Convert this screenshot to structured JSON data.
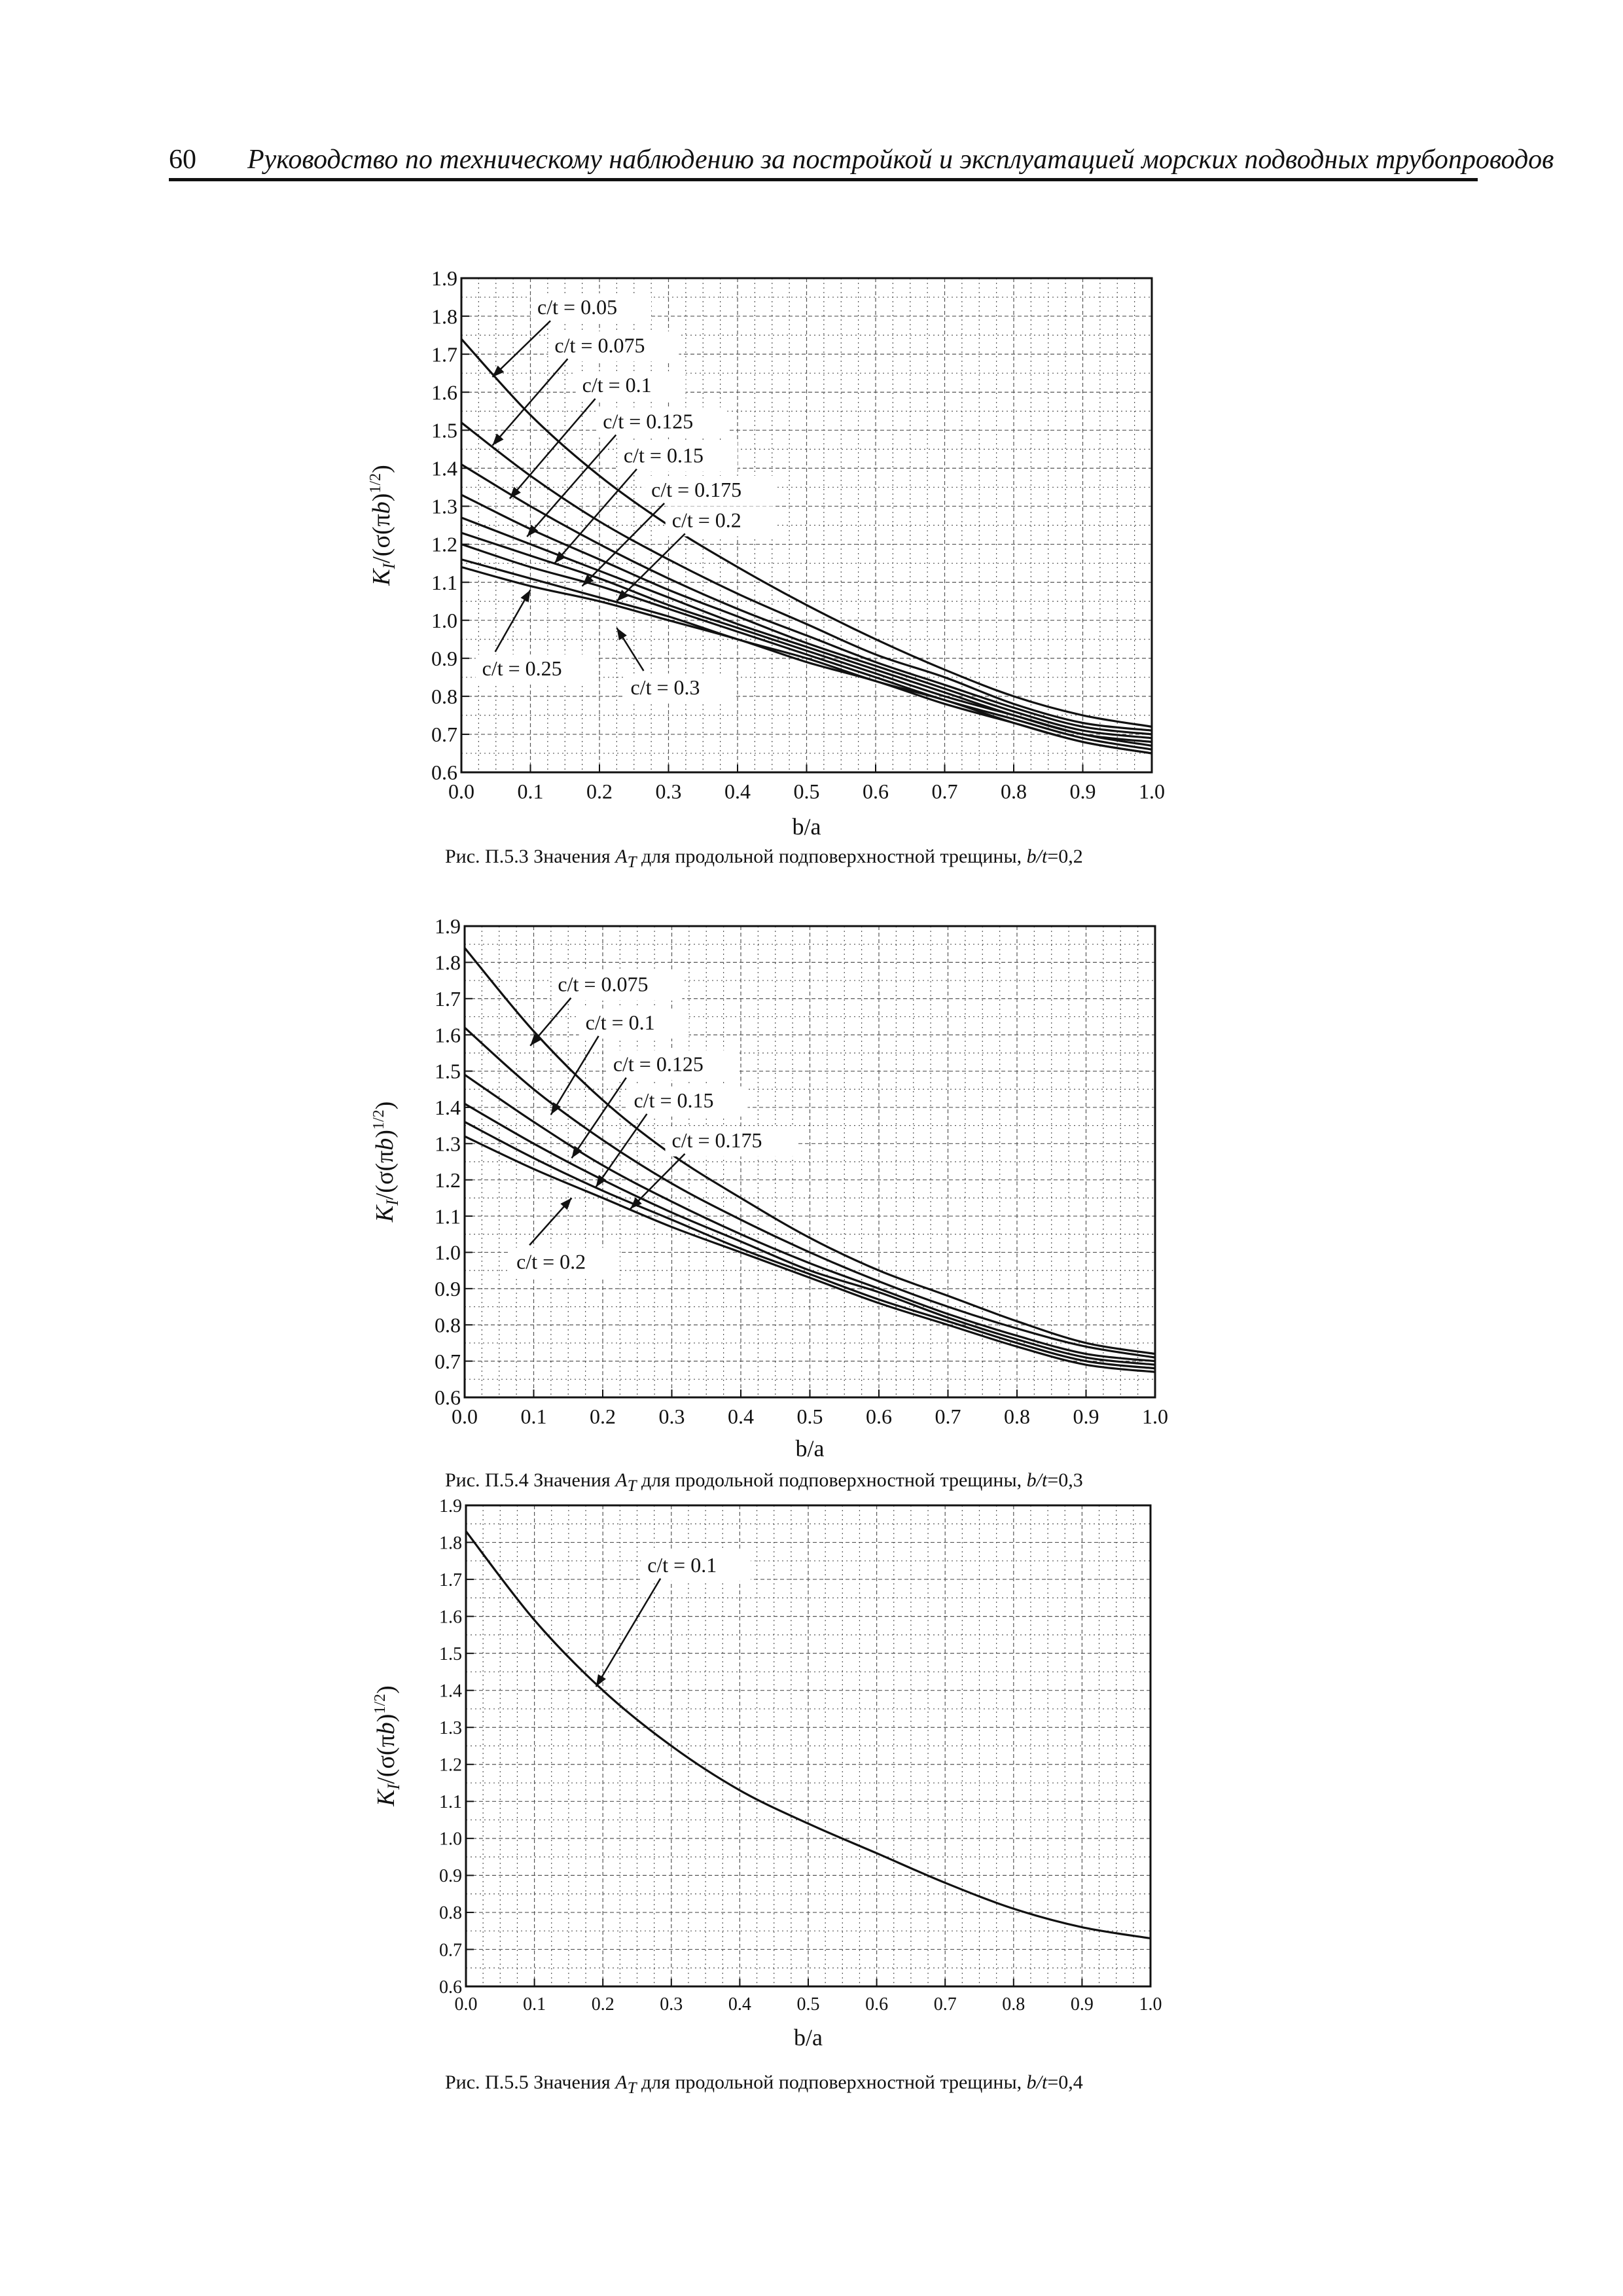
{
  "header": {
    "page_number": "60",
    "title": "Руководство по техническому наблюдению за постройкой и эксплуатацией морских подводных трубопроводов"
  },
  "chart_data": [
    {
      "type": "line",
      "id": "fig-5-3",
      "caption_prefix": "Рис. П.5.3 Значения",
      "caption_symbol": "A",
      "caption_subscript": "T",
      "caption_text": "для продольной подповерхностной трещины,",
      "caption_param": "b/t",
      "caption_value": "=0,2",
      "xlabel": "b/a",
      "ylabel": "K_I/(σ(πb)^1/2)",
      "xlim": [
        0.0,
        1.0
      ],
      "ylim": [
        0.6,
        1.9
      ],
      "xticks": [
        "0.0",
        "0.1",
        "0.2",
        "0.3",
        "0.4",
        "0.5",
        "0.6",
        "0.7",
        "0.8",
        "0.9",
        "1.0"
      ],
      "yticks": [
        "0.6",
        "0.7",
        "0.8",
        "0.9",
        "1.0",
        "1.1",
        "1.2",
        "1.3",
        "1.4",
        "1.5",
        "1.6",
        "1.7",
        "1.8",
        "1.9"
      ],
      "grid": true,
      "x": [
        0.0,
        0.1,
        0.2,
        0.3,
        0.4,
        0.5,
        0.6,
        0.7,
        0.8,
        0.9,
        1.0
      ],
      "series": [
        {
          "name": "c/t = 0.05",
          "values": [
            1.74,
            1.54,
            1.38,
            1.25,
            1.14,
            1.04,
            0.95,
            0.87,
            0.8,
            0.75,
            0.72
          ]
        },
        {
          "name": "c/t = 0.075",
          "values": [
            1.52,
            1.38,
            1.26,
            1.16,
            1.07,
            0.99,
            0.91,
            0.85,
            0.78,
            0.73,
            0.71
          ]
        },
        {
          "name": "c/t = 0.1",
          "values": [
            1.41,
            1.3,
            1.2,
            1.11,
            1.03,
            0.96,
            0.89,
            0.83,
            0.77,
            0.72,
            0.7
          ]
        },
        {
          "name": "c/t = 0.125",
          "values": [
            1.33,
            1.24,
            1.16,
            1.08,
            1.01,
            0.94,
            0.88,
            0.82,
            0.76,
            0.71,
            0.69
          ]
        },
        {
          "name": "c/t = 0.15",
          "values": [
            1.27,
            1.2,
            1.13,
            1.06,
            0.99,
            0.93,
            0.87,
            0.81,
            0.75,
            0.7,
            0.68
          ]
        },
        {
          "name": "c/t = 0.175",
          "values": [
            1.23,
            1.17,
            1.11,
            1.04,
            0.98,
            0.92,
            0.86,
            0.8,
            0.75,
            0.7,
            0.67
          ]
        },
        {
          "name": "c/t = 0.2",
          "values": [
            1.2,
            1.14,
            1.09,
            1.03,
            0.97,
            0.91,
            0.85,
            0.79,
            0.74,
            0.69,
            0.66
          ]
        },
        {
          "name": "c/t = 0.25",
          "values": [
            1.16,
            1.11,
            1.06,
            1.01,
            0.95,
            0.9,
            0.84,
            0.79,
            0.73,
            0.68,
            0.65
          ]
        },
        {
          "name": "c/t = 0.3",
          "values": [
            1.14,
            1.09,
            1.05,
            1.0,
            0.95,
            0.89,
            0.84,
            0.78,
            0.73,
            0.68,
            0.65
          ]
        }
      ],
      "annotations": [
        {
          "text": "c/t = 0.05",
          "tx": 0.11,
          "ty": 1.805,
          "px": 0.045,
          "py": 1.64
        },
        {
          "text": "c/t = 0.075",
          "tx": 0.135,
          "ty": 1.705,
          "px": 0.045,
          "py": 1.46
        },
        {
          "text": "c/t = 0.1",
          "tx": 0.175,
          "ty": 1.6,
          "px": 0.07,
          "py": 1.32
        },
        {
          "text": "c/t = 0.125",
          "tx": 0.205,
          "ty": 1.505,
          "px": 0.095,
          "py": 1.22
        },
        {
          "text": "c/t = 0.15",
          "tx": 0.235,
          "ty": 1.415,
          "px": 0.135,
          "py": 1.15
        },
        {
          "text": "c/t = 0.175",
          "tx": 0.275,
          "ty": 1.325,
          "px": 0.175,
          "py": 1.09
        },
        {
          "text": "c/t = 0.2",
          "tx": 0.305,
          "ty": 1.245,
          "px": 0.225,
          "py": 1.05
        },
        {
          "text": "c/t = 0.25",
          "tx": 0.03,
          "ty": 0.855,
          "px": 0.1,
          "py": 1.08,
          "below": true
        },
        {
          "text": "c/t = 0.3",
          "tx": 0.245,
          "ty": 0.805,
          "px": 0.225,
          "py": 0.98,
          "below": true
        }
      ]
    },
    {
      "type": "line",
      "id": "fig-5-4",
      "caption_prefix": "Рис. П.5.4 Значения",
      "caption_symbol": "A",
      "caption_subscript": "T",
      "caption_text": "для продольной подповерхностной трещины,",
      "caption_param": "b/t",
      "caption_value": "=0,3",
      "xlabel": "b/a",
      "ylabel": "K_I/(σ(πb)^1/2)",
      "xlim": [
        0.0,
        1.0
      ],
      "ylim": [
        0.6,
        1.9
      ],
      "xticks": [
        "0.0",
        "0.1",
        "0.2",
        "0.3",
        "0.4",
        "0.5",
        "0.6",
        "0.7",
        "0.8",
        "0.9",
        "1.0"
      ],
      "yticks": [
        "0.6",
        "0.7",
        "0.8",
        "0.9",
        "1.0",
        "1.1",
        "1.2",
        "1.3",
        "1.4",
        "1.5",
        "1.6",
        "1.7",
        "1.8",
        "1.9"
      ],
      "grid": true,
      "x": [
        0.0,
        0.1,
        0.2,
        0.3,
        0.4,
        0.5,
        0.6,
        0.7,
        0.8,
        0.9,
        1.0
      ],
      "series": [
        {
          "name": "c/t = 0.075",
          "values": [
            1.84,
            1.61,
            1.42,
            1.27,
            1.15,
            1.04,
            0.95,
            0.88,
            0.81,
            0.75,
            0.72
          ]
        },
        {
          "name": "c/t = 0.1",
          "values": [
            1.62,
            1.45,
            1.31,
            1.19,
            1.09,
            1.0,
            0.92,
            0.85,
            0.79,
            0.74,
            0.71
          ]
        },
        {
          "name": "c/t = 0.125",
          "values": [
            1.49,
            1.36,
            1.24,
            1.14,
            1.05,
            0.97,
            0.9,
            0.83,
            0.77,
            0.72,
            0.7
          ]
        },
        {
          "name": "c/t = 0.15",
          "values": [
            1.41,
            1.3,
            1.2,
            1.11,
            1.03,
            0.95,
            0.89,
            0.82,
            0.76,
            0.71,
            0.69
          ]
        },
        {
          "name": "c/t = 0.175",
          "values": [
            1.36,
            1.26,
            1.17,
            1.09,
            1.01,
            0.94,
            0.87,
            0.81,
            0.75,
            0.7,
            0.68
          ]
        },
        {
          "name": "c/t = 0.2",
          "values": [
            1.32,
            1.23,
            1.15,
            1.07,
            1.0,
            0.93,
            0.86,
            0.8,
            0.74,
            0.69,
            0.67
          ]
        }
      ],
      "annotations": [
        {
          "text": "c/t = 0.075",
          "tx": 0.135,
          "ty": 1.72,
          "px": 0.095,
          "py": 1.57
        },
        {
          "text": "c/t = 0.1",
          "tx": 0.175,
          "ty": 1.615,
          "px": 0.125,
          "py": 1.38
        },
        {
          "text": "c/t = 0.125",
          "tx": 0.215,
          "ty": 1.5,
          "px": 0.155,
          "py": 1.26
        },
        {
          "text": "c/t = 0.15",
          "tx": 0.245,
          "ty": 1.4,
          "px": 0.19,
          "py": 1.18
        },
        {
          "text": "c/t = 0.175",
          "tx": 0.3,
          "ty": 1.29,
          "px": 0.24,
          "py": 1.12
        },
        {
          "text": "c/t = 0.2",
          "tx": 0.075,
          "ty": 0.955,
          "px": 0.155,
          "py": 1.15,
          "below": true
        }
      ]
    },
    {
      "type": "line",
      "id": "fig-5-5",
      "caption_prefix": "Рис. П.5.5 Значения",
      "caption_symbol": "A",
      "caption_subscript": "T",
      "caption_text": "для продольной подповерхностной трещины,",
      "caption_param": "b/t",
      "caption_value": "=0,4",
      "xlabel": "b/a",
      "ylabel": "K_I/(σ(πb)^1/2)",
      "xlim": [
        0.0,
        1.0
      ],
      "ylim": [
        0.6,
        1.9
      ],
      "xticks": [
        "0.0",
        "0.1",
        "0.2",
        "0.3",
        "0.4",
        "0.5",
        "0.6",
        "0.7",
        "0.8",
        "0.9",
        "1.0"
      ],
      "yticks": [
        "0.6",
        "0.7",
        "0.8",
        "0.9",
        "1.0",
        "1.1",
        "1.2",
        "1.3",
        "1.4",
        "1.5",
        "1.6",
        "1.7",
        "1.8",
        "1.9"
      ],
      "grid": true,
      "x": [
        0.0,
        0.1,
        0.2,
        0.3,
        0.4,
        0.5,
        0.6,
        0.7,
        0.8,
        0.9,
        1.0
      ],
      "series": [
        {
          "name": "c/t = 0.1",
          "values": [
            1.83,
            1.59,
            1.4,
            1.25,
            1.13,
            1.04,
            0.96,
            0.88,
            0.81,
            0.76,
            0.73
          ]
        }
      ],
      "annotations": [
        {
          "text": "c/t = 0.1",
          "tx": 0.265,
          "ty": 1.72,
          "px": 0.19,
          "py": 1.41
        }
      ]
    }
  ]
}
